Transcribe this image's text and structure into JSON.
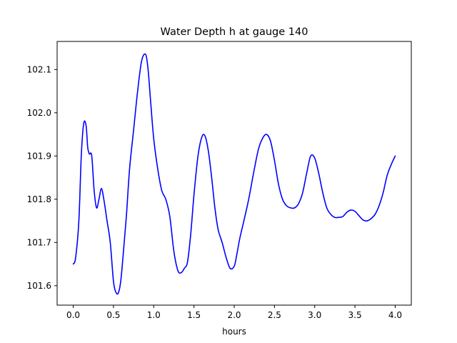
{
  "chart_data": {
    "type": "line",
    "title": "Water Depth h at gauge 140",
    "xlabel": "hours",
    "ylabel": "",
    "xlim": [
      -0.2,
      4.2
    ],
    "ylim": [
      101.555,
      102.165
    ],
    "xticks": [
      0.0,
      0.5,
      1.0,
      1.5,
      2.0,
      2.5,
      3.0,
      3.5,
      4.0
    ],
    "xtick_labels": [
      "0.0",
      "0.5",
      "1.0",
      "1.5",
      "2.0",
      "2.5",
      "3.0",
      "3.5",
      "4.0"
    ],
    "yticks": [
      101.6,
      101.7,
      101.8,
      101.9,
      102.0,
      102.1
    ],
    "ytick_labels": [
      "101.6",
      "101.7",
      "101.8",
      "101.9",
      "102.0",
      "102.1"
    ],
    "grid": false,
    "series": [
      {
        "name": "",
        "color": "#0000ff",
        "x": [
          0.0,
          0.03,
          0.07,
          0.1,
          0.13,
          0.16,
          0.18,
          0.2,
          0.23,
          0.26,
          0.29,
          0.32,
          0.35,
          0.38,
          0.42,
          0.46,
          0.5,
          0.53,
          0.56,
          0.59,
          0.62,
          0.66,
          0.7,
          0.75,
          0.8,
          0.85,
          0.9,
          0.93,
          0.96,
          1.0,
          1.05,
          1.1,
          1.15,
          1.2,
          1.25,
          1.3,
          1.34,
          1.38,
          1.42,
          1.46,
          1.5,
          1.55,
          1.6,
          1.64,
          1.68,
          1.72,
          1.76,
          1.8,
          1.85,
          1.9,
          1.95,
          2.0,
          2.03,
          2.07,
          2.12,
          2.18,
          2.24,
          2.3,
          2.35,
          2.4,
          2.45,
          2.5,
          2.55,
          2.6,
          2.65,
          2.7,
          2.75,
          2.8,
          2.85,
          2.9,
          2.95,
          3.0,
          3.05,
          3.1,
          3.15,
          3.2,
          3.25,
          3.3,
          3.35,
          3.4,
          3.45,
          3.5,
          3.55,
          3.6,
          3.65,
          3.7,
          3.75,
          3.8,
          3.85,
          3.9,
          3.95,
          4.0
        ],
        "values": [
          101.65,
          101.665,
          101.75,
          101.9,
          101.975,
          101.97,
          101.92,
          101.905,
          101.9,
          101.82,
          101.78,
          101.8,
          101.825,
          101.8,
          101.75,
          101.7,
          101.61,
          101.585,
          101.583,
          101.61,
          101.67,
          101.76,
          101.87,
          101.96,
          102.05,
          102.12,
          102.135,
          102.1,
          102.03,
          101.94,
          101.87,
          101.82,
          101.8,
          101.76,
          101.68,
          101.635,
          101.63,
          101.64,
          101.655,
          101.72,
          101.81,
          101.9,
          101.945,
          101.945,
          101.91,
          101.85,
          101.78,
          101.73,
          101.7,
          101.665,
          101.64,
          101.645,
          101.67,
          101.71,
          101.75,
          101.8,
          101.86,
          101.915,
          101.94,
          101.95,
          101.935,
          101.89,
          101.835,
          101.8,
          101.785,
          101.78,
          101.78,
          101.79,
          101.815,
          101.86,
          101.9,
          101.895,
          101.86,
          101.815,
          101.78,
          101.765,
          101.758,
          101.758,
          101.76,
          101.77,
          101.775,
          101.772,
          101.762,
          101.752,
          101.75,
          101.755,
          101.765,
          101.785,
          101.815,
          101.855,
          101.88,
          101.9
        ]
      }
    ]
  }
}
